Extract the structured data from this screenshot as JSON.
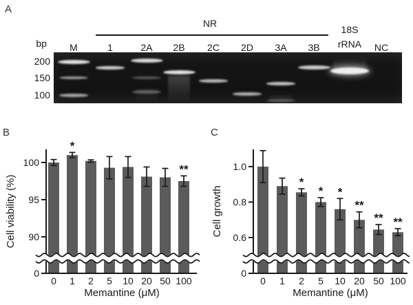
{
  "panels": {
    "a": "A",
    "b": "B",
    "c": "C"
  },
  "gel": {
    "unit_label": "bp",
    "group_label": "NR",
    "markers": [
      {
        "label": "200",
        "bp": 200
      },
      {
        "label": "150",
        "bp": 150
      },
      {
        "label": "100",
        "bp": 100
      }
    ],
    "lanes": [
      {
        "label": "M",
        "bands": [
          {
            "bp": 200,
            "intensity": 0.95,
            "size": "wide"
          },
          {
            "bp": 152,
            "intensity": 0.6
          },
          {
            "bp": 100,
            "intensity": 0.65
          }
        ]
      },
      {
        "label": "1",
        "bands": [
          {
            "bp": 182,
            "intensity": 0.85
          }
        ]
      },
      {
        "label": "2A",
        "bands": [
          {
            "bp": 203,
            "intensity": 0.9,
            "size": "wide"
          },
          {
            "bp": 152,
            "intensity": 0.3
          },
          {
            "bp": 110,
            "intensity": 0.33
          }
        ],
        "smear": {
          "top_bp": 120,
          "bottom_bp": 60,
          "intensity": 0.07,
          "fade": "down"
        }
      },
      {
        "label": "2B",
        "bands": [
          {
            "bp": 168,
            "intensity": 0.95,
            "size": "wide"
          }
        ],
        "smear": {
          "top_bp": 158,
          "bottom_bp": 55,
          "intensity": 0.2,
          "fade": "down"
        }
      },
      {
        "label": "2C",
        "bands": [
          {
            "bp": 143,
            "intensity": 0.75
          }
        ]
      },
      {
        "label": "2D",
        "bands": [
          {
            "bp": 104,
            "intensity": 0.7
          }
        ]
      },
      {
        "label": "3A",
        "bands": [
          {
            "bp": 135,
            "intensity": 0.8
          },
          {
            "bp": 84,
            "intensity": 0.28
          }
        ],
        "smear": {
          "top_bp": 100,
          "bottom_bp": 60,
          "intensity": 0.08,
          "fade": "down"
        }
      },
      {
        "label": "3B",
        "bands": [
          {
            "bp": 183,
            "intensity": 0.85,
            "size": "wide"
          }
        ]
      },
      {
        "label": "18S",
        "label2": "rRNA",
        "bands": [
          {
            "bp": 172,
            "intensity": 1.0,
            "size": "xwide"
          }
        ],
        "smear": {
          "top_bp": 215,
          "bottom_bp": 170,
          "intensity": 0.16,
          "fade": "up"
        }
      },
      {
        "label": "NC",
        "bands": []
      }
    ]
  },
  "chart_data": [
    {
      "panel": "B",
      "type": "bar",
      "categories": [
        "0",
        "1",
        "2",
        "5",
        "10",
        "20",
        "50",
        "100"
      ],
      "values": [
        100.0,
        101.0,
        100.2,
        99.3,
        99.4,
        98.1,
        98.0,
        97.5
      ],
      "errors": [
        0.4,
        0.35,
        0.15,
        1.5,
        1.4,
        1.3,
        1.2,
        0.7
      ],
      "significance": [
        "",
        "*",
        "",
        "",
        "",
        "",
        "",
        "**"
      ],
      "xlabel": "Memantine (μM)",
      "ylabel": "Cell viability (%)",
      "yticks": [
        {
          "label": "0",
          "value": 0
        },
        {
          "label": "90",
          "value": 90
        },
        {
          "label": "95",
          "value": 95
        },
        {
          "label": "100",
          "value": 100
        }
      ],
      "axis_break": true,
      "ylim_upper_segment": [
        90,
        102
      ],
      "bar_color": "#5b5b5b"
    },
    {
      "panel": "C",
      "type": "bar",
      "categories": [
        "0",
        "1",
        "2",
        "5",
        "10",
        "20",
        "50",
        "100"
      ],
      "values": [
        1.0,
        0.89,
        0.855,
        0.8,
        0.76,
        0.7,
        0.645,
        0.63
      ],
      "errors": [
        0.09,
        0.045,
        0.02,
        0.025,
        0.06,
        0.045,
        0.028,
        0.02
      ],
      "significance": [
        "",
        "",
        "*",
        "*",
        "*",
        "**",
        "**",
        "**"
      ],
      "xlabel": "Memantine (μM)",
      "ylabel": "Cell growth",
      "yticks": [
        {
          "label": "0",
          "value": 0
        },
        {
          "label": "0.6",
          "value": 0.6
        },
        {
          "label": "0.8",
          "value": 0.8
        },
        {
          "label": "1.0",
          "value": 1.0
        }
      ],
      "axis_break": true,
      "ylim_upper_segment": [
        0.6,
        1.1
      ],
      "bar_color": "#5b5b5b"
    }
  ]
}
